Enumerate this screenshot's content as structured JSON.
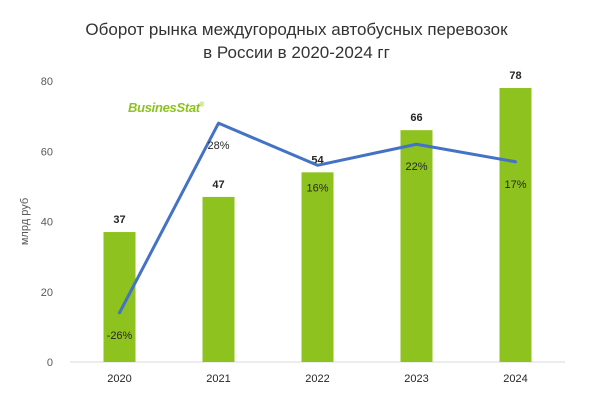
{
  "logo_text": "BusinesStat",
  "logo_mark": "®",
  "chart_data": {
    "type": "bar",
    "title_line1": "Оборот рынка междугородных автобусных перевозок",
    "title_line2": "в России в 2020-2024 гг",
    "ylabel": "млрд руб",
    "xlabel": "",
    "ylim": [
      0,
      80
    ],
    "yticks": [
      "0",
      "20",
      "40",
      "60",
      "80"
    ],
    "categories": [
      "2020",
      "2021",
      "2022",
      "2023",
      "2024"
    ],
    "values": [
      37,
      47,
      54,
      66,
      78
    ],
    "value_labels": [
      "37",
      "47",
      "54",
      "66",
      "78"
    ],
    "growth": {
      "type": "line",
      "values": [
        -26,
        28,
        16,
        22,
        17
      ],
      "labels": [
        "-26%",
        "28%",
        "16%",
        "22%",
        "17%"
      ],
      "range": [
        -40,
        40
      ]
    },
    "bar_color": "#8dc21f",
    "line_color": "#4472c4",
    "grid": false
  }
}
